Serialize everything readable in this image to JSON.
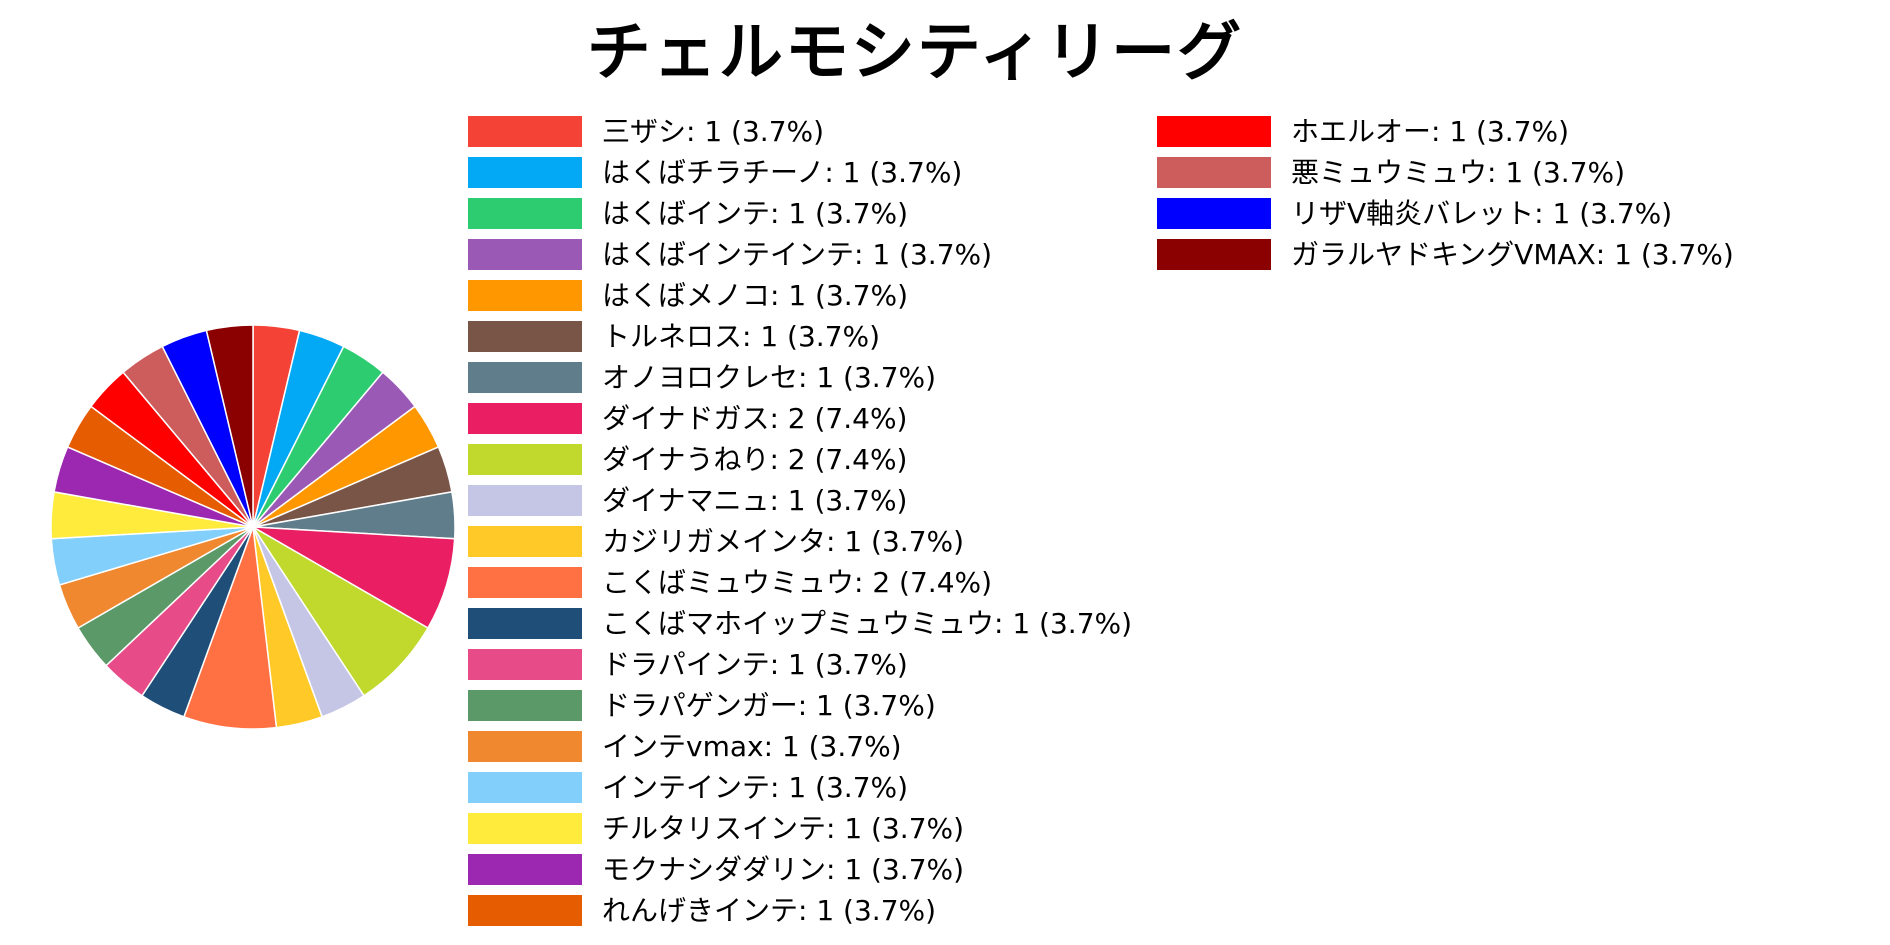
{
  "chart_data": {
    "type": "pie",
    "title": "チェルモシティリーグ",
    "slices": [
      {
        "label": "三ザシ",
        "value": 1,
        "percent": "3.7%",
        "color": "#F44336"
      },
      {
        "label": "はくばチラチーノ",
        "value": 1,
        "percent": "3.7%",
        "color": "#03A9F4"
      },
      {
        "label": "はくばインテ",
        "value": 1,
        "percent": "3.7%",
        "color": "#2ECC71"
      },
      {
        "label": "はくばインテインテ",
        "value": 1,
        "percent": "3.7%",
        "color": "#9B59B6"
      },
      {
        "label": "はくばメノコ",
        "value": 1,
        "percent": "3.7%",
        "color": "#FF9800"
      },
      {
        "label": "トルネロス",
        "value": 1,
        "percent": "3.7%",
        "color": "#795548"
      },
      {
        "label": "オノヨロクレセ",
        "value": 1,
        "percent": "3.7%",
        "color": "#607D8B"
      },
      {
        "label": "ダイナドガス",
        "value": 2,
        "percent": "7.4%",
        "color": "#E91E63"
      },
      {
        "label": "ダイナうねり",
        "value": 2,
        "percent": "7.4%",
        "color": "#C0D92C"
      },
      {
        "label": "ダイナマニュ",
        "value": 1,
        "percent": "3.7%",
        "color": "#C5C5E6"
      },
      {
        "label": "カジリガメインタ",
        "value": 1,
        "percent": "3.7%",
        "color": "#FFCA28"
      },
      {
        "label": "こくばミュウミュウ",
        "value": 2,
        "percent": "7.4%",
        "color": "#FF7043"
      },
      {
        "label": "こくばマホイップミュウミュウ",
        "value": 1,
        "percent": "3.7%",
        "color": "#1F4E79"
      },
      {
        "label": "ドラパインテ",
        "value": 1,
        "percent": "3.7%",
        "color": "#E84C88"
      },
      {
        "label": "ドラパゲンガー",
        "value": 1,
        "percent": "3.7%",
        "color": "#5B9A68"
      },
      {
        "label": "インテvmax",
        "value": 1,
        "percent": "3.7%",
        "color": "#F0882F"
      },
      {
        "label": "インテインテ",
        "value": 1,
        "percent": "3.7%",
        "color": "#81CFFA"
      },
      {
        "label": "チルタリスインテ",
        "value": 1,
        "percent": "3.7%",
        "color": "#FFEB3B"
      },
      {
        "label": "モクナシダダリン",
        "value": 1,
        "percent": "3.7%",
        "color": "#9C27B0"
      },
      {
        "label": "れんげきインテ",
        "value": 1,
        "percent": "3.7%",
        "color": "#E65C00"
      },
      {
        "label": "ホエルオー",
        "value": 1,
        "percent": "3.7%",
        "color": "#FF0000"
      },
      {
        "label": "悪ミュウミュウ",
        "value": 1,
        "percent": "3.7%",
        "color": "#CD5C5C"
      },
      {
        "label": "リザV軸炎バレット",
        "value": 1,
        "percent": "3.7%",
        "color": "#0000FF"
      },
      {
        "label": "ガラルヤドキングVMAX",
        "value": 1,
        "percent": "3.7%",
        "color": "#8B0000"
      }
    ],
    "legend_columns": [
      20,
      4
    ],
    "start_angle": "12 o'clock",
    "direction": "clockwise"
  }
}
